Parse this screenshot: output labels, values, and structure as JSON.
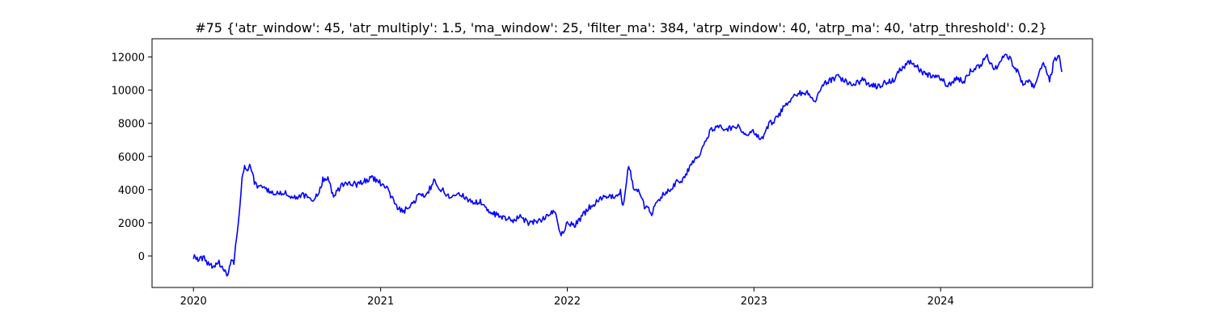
{
  "chart_data": {
    "type": "line",
    "title": "#75 {'atr_window': 45, 'atr_multiply': 1.5, 'ma_window': 25, 'filter_ma': 384, 'atrp_window': 40, 'atrp_ma': 40, 'atrp_threshold': 0.2}",
    "xlabel": "",
    "ylabel": "",
    "x_ticks": [
      "2020",
      "2021",
      "2022",
      "2023",
      "2024"
    ],
    "y_ticks": [
      "0",
      "2000",
      "4000",
      "6000",
      "8000",
      "10000",
      "12000"
    ],
    "xlim": [
      "2019-10-12",
      "2024-10-24"
    ],
    "ylim": [
      -1900,
      13100
    ],
    "grid": false,
    "line_color": "#0000ff",
    "series": [
      {
        "x": [
          "2020-01-01",
          "2020-01-10",
          "2020-01-20",
          "2020-02-01",
          "2020-02-10",
          "2020-02-20",
          "2020-03-01",
          "2020-03-08",
          "2020-03-15",
          "2020-03-20",
          "2020-03-25",
          "2020-04-01",
          "2020-04-05",
          "2020-04-10",
          "2020-04-15",
          "2020-04-20",
          "2020-05-01",
          "2020-05-15",
          "2020-06-01",
          "2020-06-15",
          "2020-07-01",
          "2020-07-15",
          "2020-08-01",
          "2020-08-15",
          "2020-09-01",
          "2020-09-10",
          "2020-09-20",
          "2020-10-01",
          "2020-10-10",
          "2020-10-20",
          "2020-11-01",
          "2020-11-15",
          "2020-12-01",
          "2020-12-15",
          "2021-01-01",
          "2021-01-15",
          "2021-02-01",
          "2021-02-15",
          "2021-03-01",
          "2021-03-15",
          "2021-04-01",
          "2021-04-15",
          "2021-05-01",
          "2021-05-15",
          "2021-06-01",
          "2021-06-15",
          "2021-07-01",
          "2021-07-15",
          "2021-08-01",
          "2021-08-15",
          "2021-09-01",
          "2021-09-15",
          "2021-10-01",
          "2021-10-15",
          "2021-11-01",
          "2021-11-15",
          "2021-12-01",
          "2021-12-10",
          "2021-12-20",
          "2022-01-01",
          "2022-01-15",
          "2022-02-01",
          "2022-02-15",
          "2022-03-01",
          "2022-03-15",
          "2022-04-01",
          "2022-04-15",
          "2022-04-20",
          "2022-05-01",
          "2022-05-10",
          "2022-05-20",
          "2022-06-01",
          "2022-06-15",
          "2022-07-01",
          "2022-07-15",
          "2022-08-01",
          "2022-08-15",
          "2022-09-01",
          "2022-09-15",
          "2022-10-01",
          "2022-10-10",
          "2022-10-20",
          "2022-11-01",
          "2022-11-15",
          "2022-12-01",
          "2022-12-15",
          "2023-01-01",
          "2023-01-15",
          "2023-02-01",
          "2023-02-15",
          "2023-03-01",
          "2023-03-15",
          "2023-04-01",
          "2023-04-15",
          "2023-05-01",
          "2023-05-15",
          "2023-06-01",
          "2023-06-15",
          "2023-07-01",
          "2023-07-15",
          "2023-08-01",
          "2023-08-15",
          "2023-09-01",
          "2023-09-15",
          "2023-10-01",
          "2023-10-15",
          "2023-11-01",
          "2023-11-15",
          "2023-12-01",
          "2023-12-15",
          "2024-01-01",
          "2024-01-15",
          "2024-02-01",
          "2024-02-15",
          "2024-03-01",
          "2024-03-15",
          "2024-04-01",
          "2024-04-10",
          "2024-04-20",
          "2024-05-01",
          "2024-05-15",
          "2024-06-01",
          "2024-06-10",
          "2024-06-20",
          "2024-07-01",
          "2024-07-10",
          "2024-07-20",
          "2024-08-01",
          "2024-08-10",
          "2024-08-20",
          "2024-08-25"
        ],
        "values": [
          0,
          -300,
          -100,
          -500,
          -600,
          -400,
          -800,
          -1200,
          -200,
          -400,
          1000,
          3000,
          4600,
          5300,
          5200,
          5400,
          4300,
          4100,
          3900,
          3700,
          3800,
          3500,
          3700,
          3400,
          3600,
          4600,
          4800,
          3500,
          4000,
          4300,
          4400,
          4300,
          4500,
          4700,
          4400,
          4000,
          3000,
          2700,
          3000,
          3600,
          3700,
          4500,
          4000,
          3600,
          3900,
          3500,
          3200,
          3300,
          2700,
          2500,
          2300,
          2100,
          2400,
          2000,
          2100,
          2200,
          2700,
          2400,
          1300,
          2000,
          1800,
          2500,
          3000,
          3300,
          3700,
          3500,
          3900,
          3000,
          5500,
          4200,
          4000,
          3000,
          2600,
          3500,
          3900,
          4400,
          4600,
          5500,
          6000,
          7200,
          7600,
          7800,
          7700,
          7700,
          7800,
          7400,
          7500,
          7000,
          8000,
          8300,
          9000,
          9500,
          9800,
          9900,
          9300,
          10400,
          10600,
          10800,
          10500,
          10300,
          10600,
          10300,
          10200,
          10500,
          10600,
          11300,
          11700,
          11400,
          11000,
          10900,
          10700,
          10300,
          10700,
          10500,
          11200,
          11400,
          12000,
          11500,
          11300,
          12100,
          11900,
          11000,
          10300,
          10600,
          10200,
          11000,
          11700,
          10500,
          11800,
          12000,
          11100
        ]
      }
    ]
  }
}
